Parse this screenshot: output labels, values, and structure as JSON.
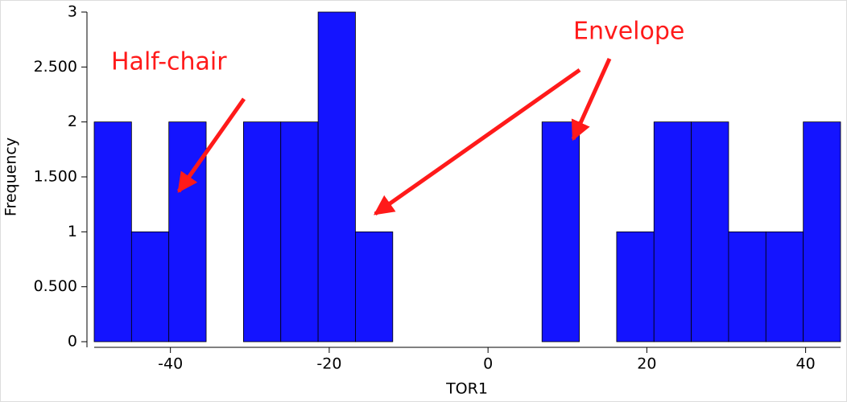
{
  "chart_data": {
    "type": "histogram",
    "x_label": "TOR1",
    "y_label": "Frequency",
    "bins": [
      -49.6,
      -44.9,
      -40.2,
      -35.5,
      -30.8,
      -26.1,
      -21.4,
      -16.7,
      -12.0,
      -7.3,
      -2.6,
      2.1,
      6.8,
      11.5,
      16.2,
      20.9,
      25.6,
      30.3,
      35.0,
      39.7,
      44.4
    ],
    "values": [
      2,
      1,
      2,
      0,
      2,
      2,
      3,
      1,
      0,
      0,
      0,
      0,
      2,
      0,
      1,
      2,
      2,
      1,
      1,
      2
    ],
    "color": "#1414ff",
    "xlim": [
      -49.6,
      44.4
    ],
    "xticks": [
      -40,
      -20,
      0,
      20,
      40
    ],
    "ylim": [
      0,
      3
    ],
    "yticks": [
      0,
      {
        "value": 0.5,
        "label": "0.500"
      },
      1,
      {
        "value": 1.5,
        "label": "1.500"
      },
      2,
      {
        "value": 2.5,
        "label": "2.500"
      },
      3
    ],
    "annotations": [
      "Half-chair",
      "Envelope"
    ]
  }
}
